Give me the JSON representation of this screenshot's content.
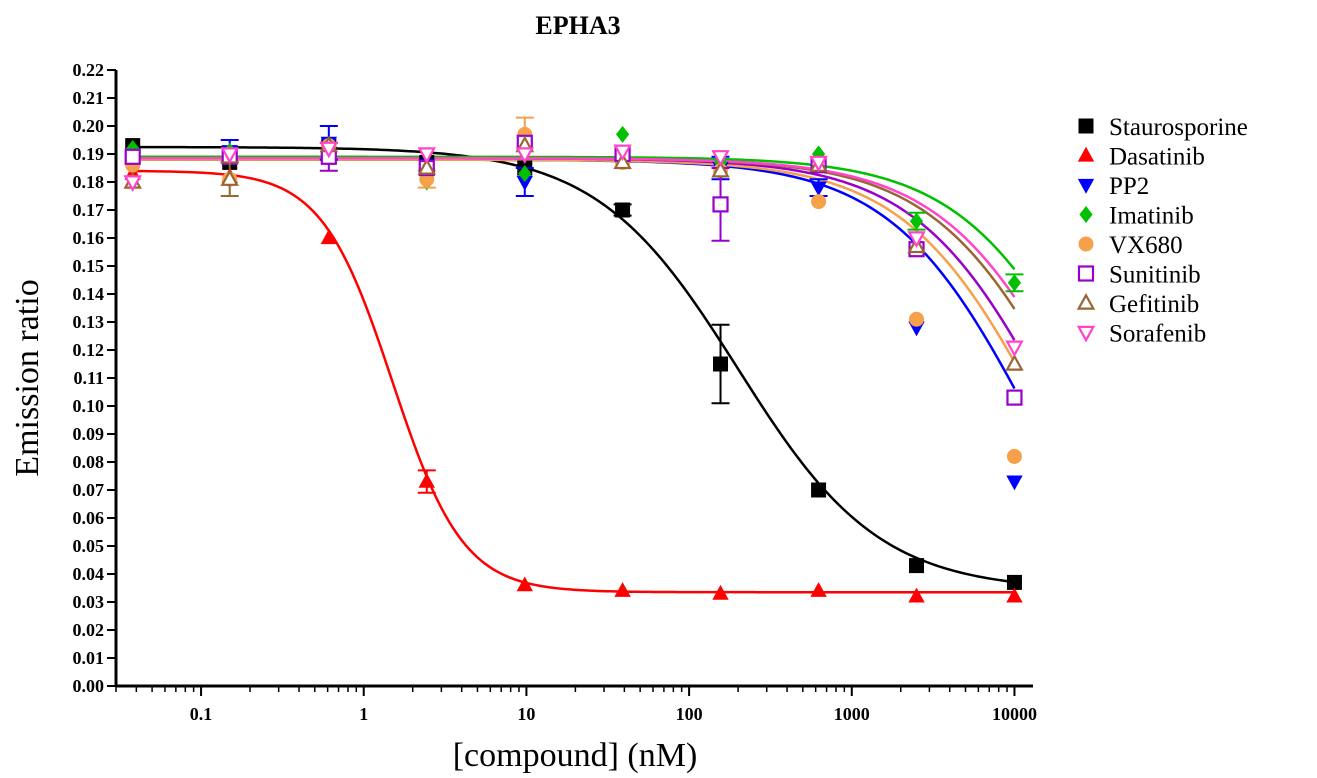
{
  "chart_data": {
    "type": "scatter",
    "title": "EPHA3",
    "xlabel": "[compound] (nM)",
    "ylabel": "Emission ratio",
    "x_scale": "log",
    "xlim": [
      0.03,
      13000
    ],
    "ylim": [
      0,
      0.22
    ],
    "x_ticks": [
      0.1,
      1,
      10,
      100,
      1000,
      10000
    ],
    "x_tick_labels": [
      "0.1",
      "1",
      "10",
      "100",
      "1000",
      "10000"
    ],
    "y_ticks": [
      0.0,
      0.01,
      0.02,
      0.03,
      0.04,
      0.05,
      0.06,
      0.07,
      0.08,
      0.09,
      0.1,
      0.11,
      0.12,
      0.13,
      0.14,
      0.15,
      0.16,
      0.17,
      0.18,
      0.19,
      0.2,
      0.21,
      0.22
    ],
    "y_tick_labels": [
      "0.00",
      "0.01",
      "0.02",
      "0.03",
      "0.04",
      "0.05",
      "0.06",
      "0.07",
      "0.08",
      "0.09",
      "0.10",
      "0.11",
      "0.12",
      "0.13",
      "0.14",
      "0.15",
      "0.16",
      "0.17",
      "0.18",
      "0.19",
      "0.20",
      "0.21",
      "0.22"
    ],
    "grid": false,
    "legend_position": "right",
    "x": [
      0.038,
      0.15,
      0.61,
      2.44,
      9.77,
      39,
      156,
      625,
      2500,
      10000
    ],
    "series": [
      {
        "name": "Staurosporine",
        "color": "#000000",
        "marker": "square-filled",
        "values": [
          0.193,
          0.187,
          0.193,
          0.187,
          0.185,
          0.17,
          0.115,
          0.07,
          0.043,
          0.037
        ],
        "errors": [
          0,
          0,
          0,
          0,
          0,
          0.002,
          0.014,
          0,
          0,
          0
        ],
        "fit": {
          "top": 0.1925,
          "bottom": 0.034,
          "ic50": 200,
          "hill": 1.0
        }
      },
      {
        "name": "Dasatinib",
        "color": "#ff0000",
        "marker": "triangle-up-filled",
        "values": [
          0.183,
          0.182,
          0.16,
          0.073,
          0.036,
          0.034,
          0.033,
          0.034,
          0.032,
          0.032
        ],
        "errors": [
          0,
          0,
          0,
          0.004,
          0,
          0,
          0,
          0,
          0,
          0
        ],
        "fit": {
          "top": 0.184,
          "bottom": 0.0335,
          "ic50": 1.5,
          "hill": 2.0
        }
      },
      {
        "name": "PP2",
        "color": "#0000ff",
        "marker": "triangle-down-filled",
        "values": [
          0.187,
          0.191,
          0.194,
          0.186,
          0.18,
          0.188,
          0.185,
          0.178,
          0.128,
          0.073
        ],
        "errors": [
          0,
          0.004,
          0.006,
          0,
          0.005,
          0,
          0.004,
          0.003,
          0,
          0
        ],
        "fit": {
          "top": 0.188,
          "bottom": 0.0,
          "ic50": 13000,
          "hill": 1.0
        }
      },
      {
        "name": "Imatinib",
        "color": "#00c000",
        "marker": "diamond-filled",
        "values": [
          0.192,
          0.191,
          0.192,
          0.18,
          0.183,
          0.197,
          0.187,
          0.19,
          0.166,
          0.144
        ],
        "errors": [
          0,
          0,
          0,
          0,
          0,
          0,
          0,
          0,
          0.003,
          0.003
        ],
        "fit": {
          "top": 0.189,
          "bottom": 0.0,
          "ic50": 37000,
          "hill": 1.0
        }
      },
      {
        "name": "VX680",
        "color": "#f7a04a",
        "marker": "circle-filled",
        "values": [
          0.186,
          0.181,
          0.193,
          0.181,
          0.197,
          0.187,
          0.184,
          0.173,
          0.131,
          0.082
        ],
        "errors": [
          0,
          0,
          0,
          0.003,
          0.006,
          0,
          0,
          0,
          0,
          0
        ],
        "fit": {
          "top": 0.188,
          "bottom": 0.0,
          "ic50": 16000,
          "hill": 1.0
        }
      },
      {
        "name": "Sunitinib",
        "color": "#9900cc",
        "marker": "square-open",
        "values": [
          0.189,
          0.189,
          0.189,
          0.185,
          0.194,
          0.19,
          0.172,
          0.186,
          0.156,
          0.103
        ],
        "errors": [
          0,
          0,
          0.005,
          0,
          0,
          0,
          0.013,
          0,
          0,
          0
        ],
        "fit": {
          "top": 0.1885,
          "bottom": 0.0,
          "ic50": 19000,
          "hill": 1.0
        }
      },
      {
        "name": "Gefitinib",
        "color": "#996633",
        "marker": "triangle-up-open",
        "values": [
          0.18,
          0.181,
          0.193,
          0.185,
          0.193,
          0.187,
          0.184,
          0.186,
          0.157,
          0.115
        ],
        "errors": [
          0,
          0.006,
          0,
          0,
          0,
          0,
          0,
          0,
          0,
          0
        ],
        "fit": {
          "top": 0.1885,
          "bottom": 0.0,
          "ic50": 25000,
          "hill": 1.0
        }
      },
      {
        "name": "Sorafenib",
        "color": "#ff44cc",
        "marker": "triangle-down-open",
        "values": [
          0.18,
          0.19,
          0.192,
          0.19,
          0.19,
          0.191,
          0.189,
          0.187,
          0.16,
          0.121
        ],
        "errors": [
          0,
          0,
          0,
          0,
          0,
          0,
          0,
          0,
          0,
          0
        ],
        "fit": {
          "top": 0.1885,
          "bottom": 0.0,
          "ic50": 28000,
          "hill": 1.0
        }
      }
    ]
  }
}
